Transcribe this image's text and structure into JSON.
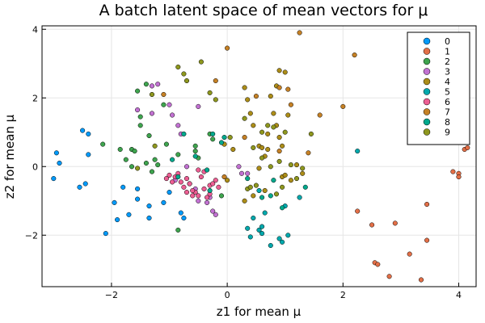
{
  "chart_data": {
    "type": "scatter",
    "title": "A batch latent space of mean vectors for μ",
    "xlabel": "z1 for mean μ",
    "ylabel": "z2 for mean μ",
    "xlim": [
      -3.2,
      4.3
    ],
    "ylim": [
      -3.5,
      4.1
    ],
    "xticks": [
      -2,
      0,
      2,
      4
    ],
    "yticks": [
      -2,
      0,
      2,
      4
    ],
    "grid": true,
    "legend_position": "top-right",
    "series": [
      {
        "name": "0",
        "color": "#009AFA",
        "points": [
          [
            -3.0,
            -0.35
          ],
          [
            -2.95,
            0.4
          ],
          [
            -2.9,
            0.1
          ],
          [
            -2.55,
            -0.6
          ],
          [
            -2.5,
            1.05
          ],
          [
            -2.45,
            -0.5
          ],
          [
            -2.4,
            0.95
          ],
          [
            -2.4,
            0.35
          ],
          [
            -2.1,
            -1.95
          ],
          [
            -1.95,
            -1.05
          ],
          [
            -1.9,
            -1.55
          ],
          [
            -1.8,
            -0.6
          ],
          [
            -1.7,
            -1.4
          ],
          [
            -1.55,
            -0.65
          ],
          [
            -1.55,
            -0.95
          ],
          [
            -1.35,
            -1.15
          ],
          [
            -1.35,
            -1.5
          ],
          [
            -1.1,
            -1.05
          ],
          [
            -1.0,
            -0.75
          ],
          [
            -0.8,
            -1.35
          ],
          [
            -0.75,
            -1.5
          ],
          [
            -0.65,
            -0.5
          ]
        ]
      },
      {
        "name": "1",
        "color": "#E36F47",
        "points": [
          [
            2.25,
            -1.3
          ],
          [
            2.5,
            -1.7
          ],
          [
            2.55,
            -2.8
          ],
          [
            2.6,
            -2.85
          ],
          [
            2.8,
            -3.2
          ],
          [
            2.9,
            -1.65
          ],
          [
            3.15,
            -2.55
          ],
          [
            3.35,
            -3.3
          ],
          [
            3.45,
            -2.15
          ],
          [
            3.45,
            -1.1
          ],
          [
            3.9,
            -0.15
          ],
          [
            4.0,
            -0.2
          ],
          [
            4.0,
            -0.3
          ],
          [
            4.1,
            0.5
          ],
          [
            4.15,
            0.55
          ]
        ]
      },
      {
        "name": "2",
        "color": "#3EA44E",
        "points": [
          [
            -2.15,
            0.65
          ],
          [
            -1.85,
            0.5
          ],
          [
            -1.65,
            0.5
          ],
          [
            -1.6,
            0.45
          ],
          [
            -1.5,
            1.45
          ],
          [
            -1.5,
            1.2
          ],
          [
            -1.55,
            2.2
          ],
          [
            -1.4,
            2.4
          ],
          [
            -1.4,
            0.1
          ],
          [
            -1.35,
            0.9
          ],
          [
            -1.3,
            -0.15
          ],
          [
            -1.25,
            0.2
          ],
          [
            -1.2,
            0.05
          ],
          [
            -1.1,
            1.8
          ],
          [
            -1.05,
            0.65
          ],
          [
            -0.85,
            -1.85
          ],
          [
            -0.85,
            0.35
          ],
          [
            -0.55,
            0.6
          ],
          [
            -0.55,
            0.45
          ],
          [
            -0.5,
            0.25
          ],
          [
            -0.3,
            0.95
          ],
          [
            -0.25,
            0.8
          ],
          [
            -0.1,
            -0.85
          ],
          [
            -1.65,
            0.0
          ],
          [
            -1.75,
            0.2
          ]
        ]
      },
      {
        "name": "3",
        "color": "#C271D2",
        "points": [
          [
            -1.55,
            1.65
          ],
          [
            -1.3,
            2.35
          ],
          [
            -1.3,
            1.55
          ],
          [
            -1.2,
            2.4
          ],
          [
            -1.0,
            1.8
          ],
          [
            -0.95,
            1.5
          ],
          [
            -0.85,
            1.2
          ],
          [
            -0.8,
            0.95
          ],
          [
            -0.55,
            -0.65
          ],
          [
            -0.5,
            1.75
          ],
          [
            -0.5,
            -1.0
          ],
          [
            -0.35,
            -1.05
          ],
          [
            -0.3,
            -0.9
          ],
          [
            -0.25,
            -1.3
          ],
          [
            -0.2,
            -1.4
          ],
          [
            0.2,
            0.0
          ],
          [
            0.25,
            -0.2
          ],
          [
            0.35,
            -0.2
          ],
          [
            -0.7,
            0.0
          ],
          [
            -0.9,
            -0.4
          ]
        ]
      },
      {
        "name": "4",
        "color": "#AC8D18",
        "points": [
          [
            0.0,
            -0.4
          ],
          [
            -0.05,
            0.65
          ],
          [
            0.1,
            0.5
          ],
          [
            0.3,
            2.3
          ],
          [
            0.35,
            1.95
          ],
          [
            0.4,
            1.55
          ],
          [
            0.45,
            1.2
          ],
          [
            0.55,
            0.6
          ],
          [
            0.6,
            0.55
          ],
          [
            0.65,
            -0.7
          ],
          [
            0.65,
            0.3
          ],
          [
            0.7,
            0.5
          ],
          [
            0.75,
            2.05
          ],
          [
            0.8,
            1.55
          ],
          [
            0.85,
            2.35
          ],
          [
            0.85,
            1.2
          ],
          [
            0.9,
            0.85
          ],
          [
            0.95,
            0.6
          ],
          [
            0.95,
            -0.3
          ],
          [
            1.0,
            -0.25
          ],
          [
            1.05,
            1.5
          ],
          [
            1.1,
            -0.4
          ],
          [
            1.2,
            0.05
          ],
          [
            1.3,
            -0.2
          ],
          [
            0.9,
            2.8
          ],
          [
            1.0,
            2.75
          ],
          [
            0.7,
            0.95
          ],
          [
            0.55,
            -0.05
          ],
          [
            0.45,
            -0.85
          ],
          [
            0.3,
            -1.0
          ]
        ]
      },
      {
        "name": "5",
        "color": "#00A9AD",
        "points": [
          [
            0.35,
            -1.8
          ],
          [
            0.4,
            -2.05
          ],
          [
            0.45,
            -1.5
          ],
          [
            0.55,
            -1.85
          ],
          [
            0.6,
            -1.75
          ],
          [
            0.6,
            -1.95
          ],
          [
            0.65,
            -1.35
          ],
          [
            0.75,
            -2.3
          ],
          [
            0.9,
            -2.1
          ],
          [
            0.95,
            -2.2
          ],
          [
            1.0,
            -1.15
          ],
          [
            1.05,
            -2.0
          ],
          [
            1.25,
            -0.9
          ],
          [
            2.25,
            0.45
          ],
          [
            0.55,
            -0.7
          ]
        ]
      },
      {
        "name": "6",
        "color": "#ED5E93",
        "points": [
          [
            -1.05,
            -0.35
          ],
          [
            -1.0,
            -0.25
          ],
          [
            -0.95,
            -0.45
          ],
          [
            -0.9,
            -0.3
          ],
          [
            -0.85,
            -0.2
          ],
          [
            -0.8,
            -0.45
          ],
          [
            -0.75,
            -0.6
          ],
          [
            -0.7,
            -0.35
          ],
          [
            -0.65,
            -0.5
          ],
          [
            -0.6,
            -0.85
          ],
          [
            -0.55,
            -0.75
          ],
          [
            -0.5,
            -0.1
          ],
          [
            -0.45,
            -0.3
          ],
          [
            -0.4,
            -0.15
          ],
          [
            -0.35,
            -0.9
          ],
          [
            -0.3,
            -0.55
          ],
          [
            -0.25,
            -0.5
          ],
          [
            -0.2,
            -0.4
          ],
          [
            -0.15,
            -0.6
          ],
          [
            -0.6,
            -0.7
          ],
          [
            -0.4,
            -0.65
          ],
          [
            -0.3,
            -0.8
          ],
          [
            -0.7,
            -0.75
          ],
          [
            -0.5,
            -0.85
          ]
        ]
      },
      {
        "name": "7",
        "color": "#C68125",
        "points": [
          [
            -1.1,
            2.1
          ],
          [
            -0.2,
            2.5
          ],
          [
            0.0,
            3.45
          ],
          [
            0.5,
            2.05
          ],
          [
            0.9,
            2.3
          ],
          [
            1.1,
            1.8
          ],
          [
            1.25,
            3.9
          ],
          [
            1.4,
            0.4
          ],
          [
            1.6,
            1.5
          ],
          [
            2.0,
            1.75
          ],
          [
            2.2,
            3.25
          ],
          [
            1.05,
            2.25
          ],
          [
            0.9,
            0.45
          ],
          [
            0.3,
            0.85
          ],
          [
            -0.05,
            -0.3
          ]
        ]
      },
      {
        "name": "8",
        "color": "#00A98D",
        "points": [
          [
            -0.95,
            0.2
          ],
          [
            -0.85,
            -0.3
          ],
          [
            -0.75,
            0.95
          ],
          [
            -0.35,
            -0.1
          ],
          [
            -0.3,
            -0.7
          ],
          [
            -0.25,
            0.95
          ],
          [
            -0.1,
            0.7
          ],
          [
            -0.05,
            0.85
          ],
          [
            0.6,
            -0.9
          ],
          [
            0.75,
            -0.85
          ],
          [
            0.8,
            -0.4
          ],
          [
            0.95,
            -1.2
          ],
          [
            1.35,
            -0.6
          ],
          [
            0.35,
            -0.35
          ],
          [
            -0.55,
            0.3
          ]
        ]
      },
      {
        "name": "9",
        "color": "#8E971E",
        "points": [
          [
            -1.55,
            -0.05
          ],
          [
            -1.3,
            2.1
          ],
          [
            -1.25,
            0.6
          ],
          [
            -0.85,
            2.9
          ],
          [
            -0.75,
            2.7
          ],
          [
            -0.7,
            2.5
          ],
          [
            -0.45,
            3.05
          ],
          [
            -0.3,
            2.15
          ],
          [
            -0.2,
            1.95
          ],
          [
            0.05,
            0.85
          ],
          [
            0.3,
            1.4
          ],
          [
            0.35,
            -0.65
          ],
          [
            0.4,
            -0.6
          ],
          [
            0.45,
            0.55
          ],
          [
            0.6,
            1.0
          ],
          [
            0.7,
            1.2
          ],
          [
            0.75,
            0.0
          ],
          [
            0.8,
            1.15
          ],
          [
            0.85,
            -0.8
          ],
          [
            0.9,
            0.15
          ],
          [
            0.95,
            -0.6
          ],
          [
            1.0,
            1.0
          ],
          [
            1.1,
            0.05
          ],
          [
            1.2,
            -0.35
          ],
          [
            1.3,
            -0.05
          ],
          [
            1.45,
            0.95
          ],
          [
            0.6,
            0.25
          ],
          [
            0.5,
            -0.55
          ]
        ]
      }
    ]
  }
}
